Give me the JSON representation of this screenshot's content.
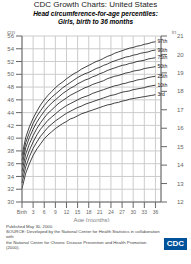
{
  "chart_data": {
    "type": "line",
    "title": "CDC Growth Charts: United States",
    "subtitle": "Head circumference-for-age percentiles:\nGirls, birth to 36 months",
    "x_label": "Age (months)",
    "y_label": "cm",
    "y2_label": "in",
    "annotations": [
      "Published May 30, 2000.",
      "SOURCE: Developed by the National Center for Health Statistics in collaboration with\nthe National Center for Chronic Disease Prevention and Health Promotion (2000).",
      "CDC"
    ],
    "x": [
      0,
      1,
      2,
      3,
      4,
      5,
      6,
      7,
      8,
      9,
      10,
      11,
      12,
      13,
      14,
      15,
      16,
      17,
      18,
      19,
      20,
      21,
      22,
      23,
      24,
      25,
      26,
      27,
      28,
      29,
      30,
      31,
      32,
      33,
      34,
      35,
      36
    ],
    "series": [
      {
        "name": "3rd",
        "color": "#111111",
        "values": [
          32.1,
          34.5,
          36.0,
          37.3,
          38.3,
          39.1,
          39.9,
          40.5,
          41.0,
          41.5,
          41.9,
          42.3,
          42.6,
          43.0,
          43.2,
          43.5,
          43.8,
          44.0,
          44.2,
          44.4,
          44.6,
          44.8,
          45.0,
          45.2,
          45.3,
          45.5,
          45.6,
          45.8,
          45.9,
          46.1,
          46.2,
          46.3,
          46.4,
          46.5,
          46.6,
          46.7,
          46.8
        ]
      },
      {
        "name": "10th",
        "color": "#111111",
        "values": [
          33.0,
          35.5,
          37.1,
          38.4,
          39.4,
          40.3,
          41.0,
          41.7,
          42.2,
          42.7,
          43.1,
          43.5,
          43.9,
          44.2,
          44.5,
          44.8,
          45.0,
          45.3,
          45.5,
          45.7,
          45.9,
          46.1,
          46.3,
          46.5,
          46.7,
          46.8,
          47.0,
          47.2,
          47.3,
          47.4,
          47.6,
          47.7,
          47.8,
          47.9,
          48.1,
          48.2,
          48.3
        ]
      },
      {
        "name": "25th",
        "color": "#111111",
        "values": [
          33.9,
          36.5,
          38.1,
          39.4,
          40.5,
          41.4,
          42.1,
          42.8,
          43.3,
          43.8,
          44.3,
          44.7,
          45.1,
          45.4,
          45.7,
          46.0,
          46.3,
          46.5,
          46.7,
          47.0,
          47.2,
          47.4,
          47.6,
          47.8,
          48.0,
          48.2,
          48.3,
          48.5,
          48.6,
          48.8,
          48.9,
          49.1,
          49.2,
          49.3,
          49.5,
          49.6,
          49.7
        ]
      },
      {
        "name": "50th",
        "color": "#111111",
        "values": [
          34.8,
          37.5,
          39.1,
          40.4,
          41.5,
          42.4,
          43.2,
          43.9,
          44.4,
          45.0,
          45.5,
          45.9,
          46.3,
          46.7,
          47.0,
          47.3,
          47.6,
          47.9,
          48.1,
          48.4,
          48.6,
          48.8,
          49.0,
          49.3,
          49.5,
          49.7,
          49.8,
          50.0,
          50.2,
          50.3,
          50.5,
          50.6,
          50.7,
          50.9,
          51.0,
          51.1,
          51.2
        ]
      },
      {
        "name": "75th",
        "color": "#111111",
        "values": [
          35.7,
          38.5,
          40.1,
          41.4,
          42.5,
          43.4,
          44.2,
          44.9,
          45.5,
          46.0,
          46.5,
          47.0,
          47.4,
          47.8,
          48.1,
          48.5,
          48.8,
          49.1,
          49.3,
          49.6,
          49.8,
          50.1,
          50.3,
          50.6,
          50.8,
          51.0,
          51.2,
          51.4,
          51.5,
          51.7,
          51.8,
          52.0,
          52.1,
          52.2,
          52.4,
          52.5,
          52.6
        ]
      },
      {
        "name": "90th",
        "color": "#111111",
        "values": [
          36.5,
          39.3,
          40.9,
          42.3,
          43.4,
          44.3,
          45.1,
          45.8,
          46.4,
          46.9,
          47.4,
          47.9,
          48.3,
          48.7,
          49.1,
          49.5,
          49.8,
          50.1,
          50.3,
          50.6,
          50.9,
          51.1,
          51.4,
          51.6,
          51.9,
          52.1,
          52.3,
          52.5,
          52.7,
          52.8,
          53.0,
          53.1,
          53.3,
          53.4,
          53.5,
          53.7,
          53.8
        ]
      },
      {
        "name": "97th",
        "color": "#111111",
        "values": [
          37.3,
          40.1,
          41.8,
          43.1,
          44.2,
          45.2,
          46.0,
          46.7,
          47.3,
          47.9,
          48.4,
          48.8,
          49.3,
          49.7,
          50.1,
          50.4,
          50.8,
          51.1,
          51.4,
          51.7,
          52.0,
          52.2,
          52.5,
          52.8,
          53.0,
          53.3,
          53.5,
          53.7,
          53.9,
          54.1,
          54.2,
          54.4,
          54.5,
          54.7,
          54.8,
          55.0,
          55.1
        ]
      }
    ],
    "xlim": [
      0,
      37.5
    ],
    "xticks": [
      {
        "value": 0,
        "label": "Birth"
      },
      3,
      6,
      9,
      12,
      15,
      18,
      21,
      24,
      27,
      30,
      33,
      36
    ],
    "ylim": [
      30,
      56
    ],
    "yticks": [
      30,
      32,
      34,
      36,
      38,
      40,
      42,
      44,
      46,
      48,
      50,
      52,
      54,
      56
    ],
    "y2lim": [
      12,
      21
    ],
    "y2ticks": [
      12,
      13,
      14,
      15,
      16,
      17,
      18,
      19,
      20,
      21
    ],
    "grid": true
  }
}
